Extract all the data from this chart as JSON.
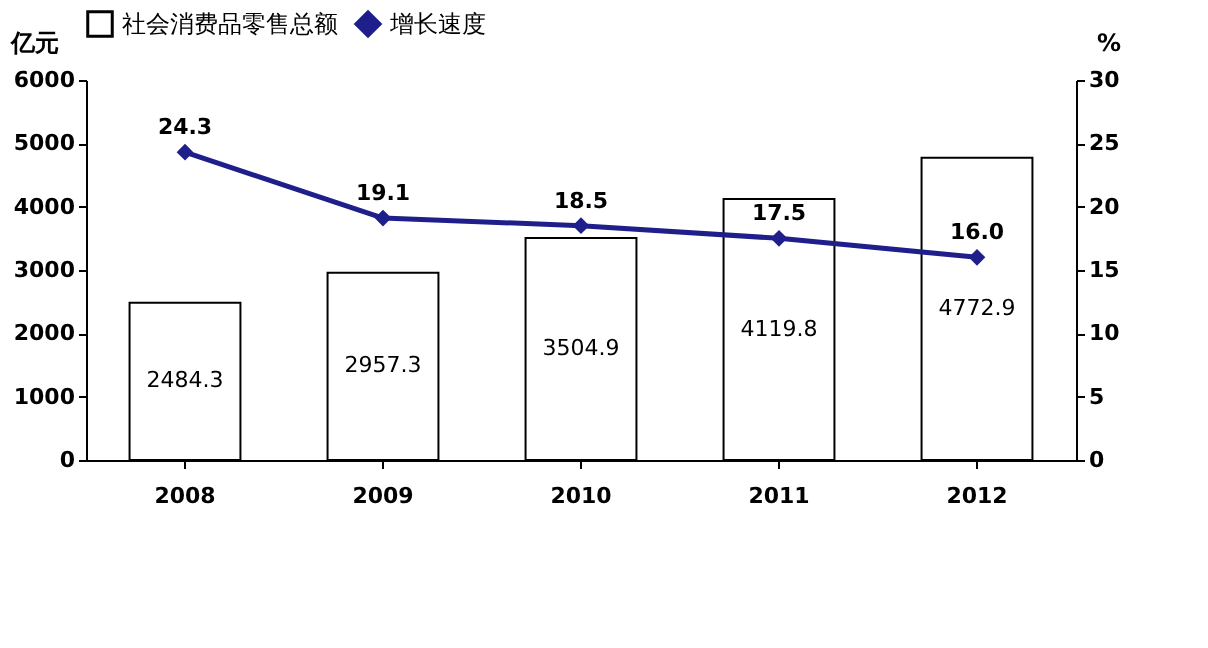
{
  "chart_data": {
    "type": "bar",
    "categories": [
      "2008",
      "2009",
      "2010",
      "2011",
      "2012"
    ],
    "ylabel": "亿元",
    "y2label": "%",
    "ylim": [
      0,
      6000
    ],
    "yticks": [
      0,
      1000,
      2000,
      3000,
      4000,
      5000,
      6000
    ],
    "y2lim": [
      0,
      30
    ],
    "y2ticks": [
      0,
      5,
      10,
      15,
      20,
      25,
      30
    ],
    "series": [
      {
        "name": "社会消费品零售总额",
        "color": "#ffffff",
        "values": [
          2484.3,
          2957.3,
          3504.9,
          4119.8,
          4772.9
        ],
        "value_labels": [
          "2484.3",
          "2957.3",
          "3504.9",
          "4119.8",
          "4772.9"
        ]
      },
      {
        "name": "增长速度",
        "type": "line",
        "axis": "y2",
        "color": "#1f1f8c",
        "marker": "diamond",
        "values": [
          24.3,
          19.1,
          18.5,
          17.5,
          16.0
        ],
        "value_labels": [
          "24.3",
          "19.1",
          "18.5",
          "17.5",
          "16.0"
        ]
      }
    ],
    "legend": "top",
    "grid": false
  }
}
